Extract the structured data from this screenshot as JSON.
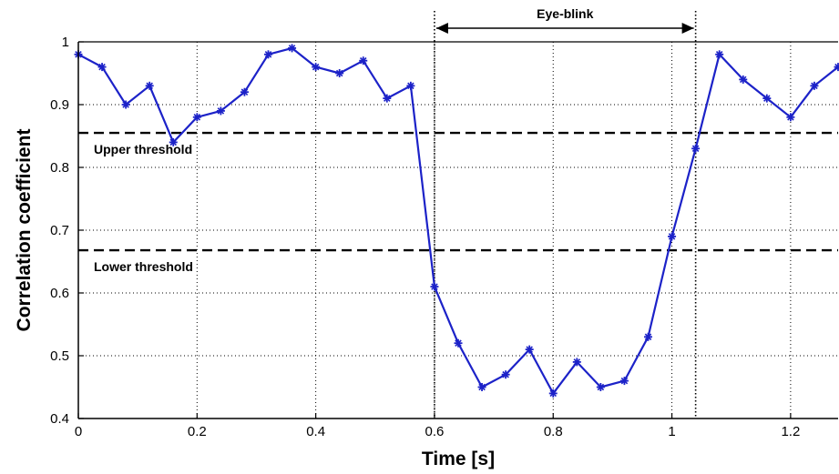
{
  "chart_data": {
    "type": "line",
    "xlabel": "Time [s]",
    "ylabel": "Correlation coefficient",
    "xlim": [
      0,
      1.28
    ],
    "ylim": [
      0.4,
      1.0
    ],
    "grid": true,
    "x_ticks": [
      0,
      0.2,
      0.4,
      0.6,
      0.8,
      1,
      1.2
    ],
    "x_tick_labels": [
      "0",
      "0.2",
      "0.4",
      "0.6",
      "0.8",
      "1",
      "1.2"
    ],
    "y_ticks": [
      0.4,
      0.5,
      0.6,
      0.7,
      0.8,
      0.9,
      1.0
    ],
    "y_tick_labels": [
      "0.4",
      "0.5",
      "0.6",
      "0.7",
      "0.8",
      "0.9",
      "1"
    ],
    "series": [
      {
        "color": "#1c22c8",
        "marker": "star",
        "x": [
          0,
          0.04,
          0.08,
          0.12,
          0.16,
          0.2,
          0.24,
          0.28,
          0.32,
          0.36,
          0.4,
          0.44,
          0.48,
          0.52,
          0.56,
          0.6,
          0.64,
          0.68,
          0.72,
          0.76,
          0.8,
          0.84,
          0.88,
          0.92,
          0.96,
          1.0,
          1.04,
          1.08,
          1.12,
          1.16,
          1.2,
          1.24,
          1.28
        ],
        "y": [
          0.98,
          0.96,
          0.9,
          0.93,
          0.84,
          0.88,
          0.89,
          0.92,
          0.98,
          0.99,
          0.96,
          0.95,
          0.97,
          0.91,
          0.93,
          0.61,
          0.52,
          0.45,
          0.47,
          0.51,
          0.44,
          0.49,
          0.45,
          0.46,
          0.53,
          0.69,
          0.83,
          0.98,
          0.94,
          0.91,
          0.88,
          0.93,
          0.96
        ]
      }
    ],
    "thresholds": [
      {
        "label": "Upper threshold",
        "value": 0.855
      },
      {
        "label": "Lower threshold",
        "value": 0.668
      }
    ],
    "event": {
      "label": "Eye-blink",
      "x_start": 0.6,
      "x_end": 1.04
    }
  }
}
